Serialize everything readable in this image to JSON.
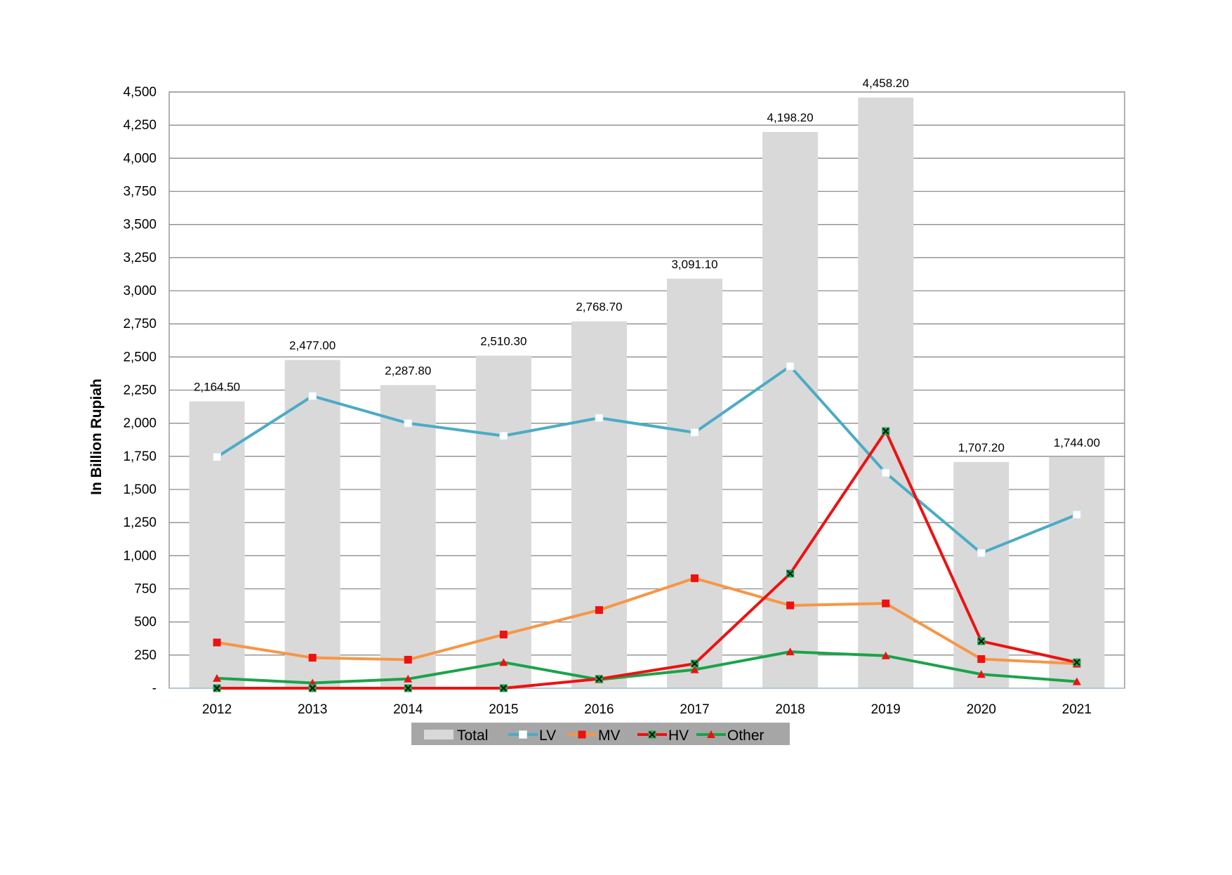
{
  "chart_data": {
    "type": "bar+line",
    "title": "",
    "xlabel": "",
    "ylabel": "In Billion Rupiah",
    "categories": [
      "2012",
      "2013",
      "2014",
      "2015",
      "2016",
      "2017",
      "2018",
      "2019",
      "2020",
      "2021"
    ],
    "ylim": [
      0,
      4500
    ],
    "yticks": [
      0,
      250,
      500,
      750,
      1000,
      1250,
      1500,
      1750,
      2000,
      2250,
      2500,
      2750,
      3000,
      3250,
      3500,
      3750,
      4000,
      4250,
      4500
    ],
    "ytick_labels": [
      "-",
      "250",
      "500",
      "750",
      "1,000",
      "1,250",
      "1,500",
      "1,750",
      "2,000",
      "2,250",
      "2,500",
      "2,750",
      "3,000",
      "3,250",
      "3,500",
      "3,750",
      "4,000",
      "4,250",
      "4,500"
    ],
    "grid": true,
    "legend_position": "bottom",
    "series": [
      {
        "name": "Total",
        "kind": "bar",
        "color": "#d9d9d9",
        "values": [
          2164.5,
          2477.0,
          2287.8,
          2510.3,
          2768.7,
          3091.1,
          4198.2,
          4458.2,
          1707.2,
          1744.0
        ],
        "data_labels": [
          "2,164.50",
          "2,477.00",
          "2,287.80",
          "2,510.30",
          "2,768.70",
          "3,091.10",
          "4,198.20",
          "4,458.20",
          "1,707.20",
          "1,744.00"
        ]
      },
      {
        "name": "LV",
        "kind": "line",
        "color": "#4bacc6",
        "marker": "square-white",
        "values": [
          1745,
          2205,
          2000,
          1905,
          2040,
          1930,
          2430,
          1625,
          1020,
          1310
        ]
      },
      {
        "name": "MV",
        "kind": "line",
        "color": "#f79646",
        "marker": "square-red",
        "values": [
          345,
          230,
          215,
          405,
          590,
          830,
          625,
          640,
          220,
          185
        ]
      },
      {
        "name": "HV",
        "kind": "line",
        "color": "#ee1111",
        "marker": "x-green",
        "values": [
          0,
          0,
          0,
          0,
          70,
          185,
          865,
          1940,
          355,
          195
        ]
      },
      {
        "name": "Other",
        "kind": "line",
        "color": "#1aa34a",
        "marker": "triangle-red",
        "values": [
          75,
          40,
          70,
          195,
          65,
          140,
          275,
          245,
          105,
          50
        ]
      }
    ]
  }
}
